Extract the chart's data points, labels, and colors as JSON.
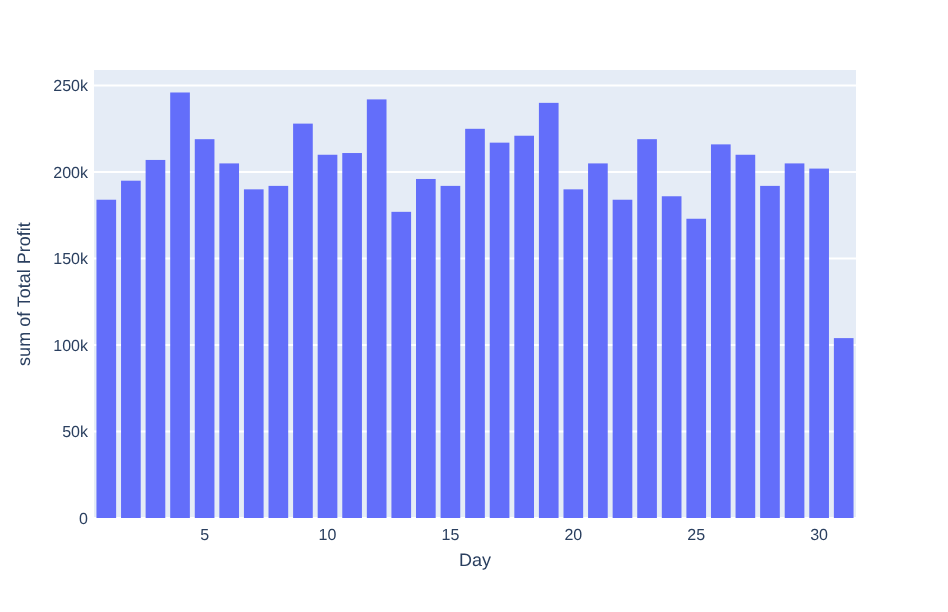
{
  "chart_data": {
    "type": "bar",
    "xlabel": "Day",
    "ylabel": "sum of Total Profit",
    "x": [
      1,
      2,
      3,
      4,
      5,
      6,
      7,
      8,
      9,
      10,
      11,
      12,
      13,
      14,
      15,
      16,
      17,
      18,
      19,
      20,
      21,
      22,
      23,
      24,
      25,
      26,
      27,
      28,
      29,
      30,
      31
    ],
    "values": [
      184000,
      195000,
      207000,
      246000,
      219000,
      205000,
      190000,
      192000,
      228000,
      210000,
      211000,
      242000,
      177000,
      196000,
      192000,
      225000,
      217000,
      221000,
      240000,
      190000,
      205000,
      184000,
      219000,
      186000,
      173000,
      216000,
      210000,
      192000,
      205000,
      202000,
      104000
    ],
    "color": "#636efa",
    "xlim": [
      0.5,
      31.5
    ],
    "xticks": [
      5,
      10,
      15,
      20,
      25,
      30
    ],
    "ylim": [
      0,
      259000
    ],
    "yticks": [
      0,
      {
        "value": 50000,
        "label": "50k"
      },
      {
        "value": 100000,
        "label": "100k"
      },
      {
        "value": 150000,
        "label": "150k"
      },
      {
        "value": 200000,
        "label": "200k"
      },
      {
        "value": 250000,
        "label": "250k"
      }
    ],
    "grid": "y"
  }
}
